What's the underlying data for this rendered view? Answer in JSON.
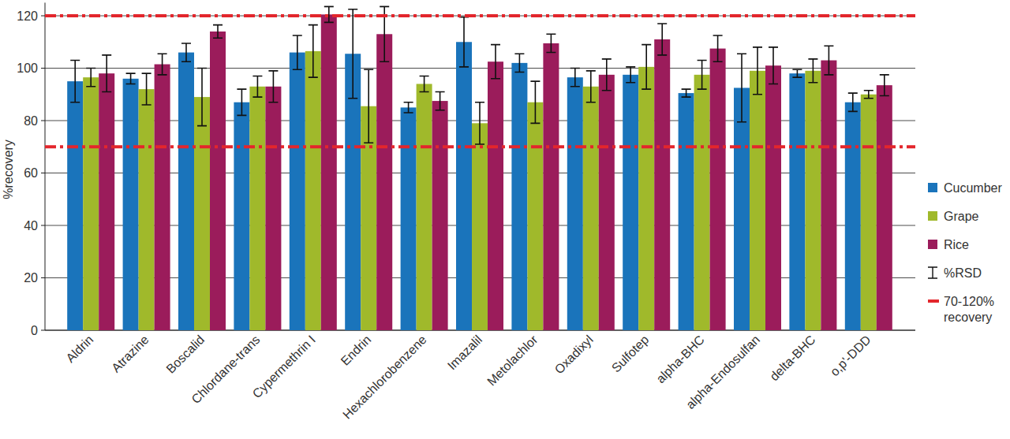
{
  "chart_data": {
    "type": "bar",
    "y_label": "%recovery",
    "categories": [
      "Aldrin",
      "Atrazine",
      "Boscalid",
      "Chlordane-trans",
      "Cypermethrin I",
      "Endrin",
      "Hexachlorobenzene",
      "Imazalil",
      "Metolachlor",
      "Oxadixyl",
      "Sulfotep",
      "alpha-BHC",
      "alpha-Endosulfan",
      "delta-BHC",
      "o,p'-DDD"
    ],
    "series": [
      {
        "name": "Cucumber",
        "color": "#1a74bb",
        "values": [
          95,
          96,
          106,
          87,
          106,
          105.5,
          85,
          110,
          102,
          96.5,
          97.5,
          90.5,
          92.5,
          98,
          87
        ],
        "errors": [
          8,
          2,
          3.5,
          5,
          6.5,
          17,
          2,
          9.5,
          3.5,
          3.5,
          3,
          1.5,
          13,
          1.5,
          3.5
        ]
      },
      {
        "name": "Grape",
        "color": "#a0b92b",
        "values": [
          96.5,
          92,
          89,
          93,
          106.5,
          85.5,
          94,
          79,
          87,
          93,
          100.5,
          97.5,
          99,
          99,
          90
        ],
        "errors": [
          3.5,
          6,
          11,
          4,
          10,
          14,
          3,
          8,
          8,
          6,
          8.5,
          5.5,
          9,
          4.5,
          1.5
        ]
      },
      {
        "name": "Rice",
        "color": "#9b1c5b",
        "values": [
          98,
          101.5,
          114,
          93,
          120.5,
          113,
          87.5,
          102.5,
          109.5,
          97.5,
          111,
          107.5,
          101,
          103,
          93.5
        ],
        "errors": [
          7,
          4,
          2.5,
          6,
          3,
          10.5,
          3.5,
          6.5,
          3.5,
          6,
          6,
          5,
          7,
          5.5,
          4
        ]
      }
    ],
    "error_label": "%RSD",
    "reference_lines": {
      "values": [
        70,
        120
      ],
      "label": "70-120% recovery",
      "color": "#e3262c",
      "line_style": "dashdot"
    },
    "ylim": [
      0,
      125
    ],
    "yticks": [
      0,
      20,
      40,
      60,
      80,
      100,
      120
    ],
    "grid": true,
    "legend": "right"
  }
}
